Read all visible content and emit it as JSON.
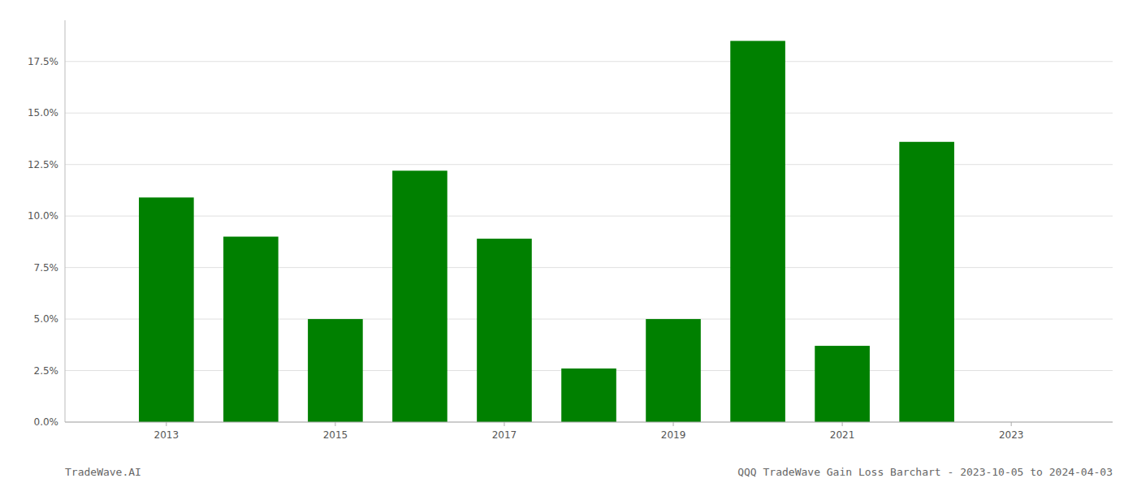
{
  "chart_data": {
    "type": "bar",
    "x": [
      2013,
      2014,
      2015,
      2016,
      2017,
      2018,
      2019,
      2020,
      2021,
      2022,
      2023
    ],
    "values": [
      0.109,
      0.09,
      0.05,
      0.122,
      0.089,
      0.026,
      0.05,
      0.185,
      0.037,
      0.136,
      0.0
    ],
    "color": "#008000",
    "xlim": [
      2011.8,
      2024.2
    ],
    "xticks": [
      2013,
      2015,
      2017,
      2019,
      2021,
      2023
    ],
    "ylim": [
      0,
      0.195
    ],
    "yticks": [
      {
        "value": 0.0,
        "label": "0.0%"
      },
      {
        "value": 0.025,
        "label": "2.5%"
      },
      {
        "value": 0.05,
        "label": "5.0%"
      },
      {
        "value": 0.075,
        "label": "7.5%"
      },
      {
        "value": 0.1,
        "label": "10.0%"
      },
      {
        "value": 0.125,
        "label": "12.5%"
      },
      {
        "value": 0.15,
        "label": "15.0%"
      },
      {
        "value": 0.175,
        "label": "17.5%"
      }
    ],
    "grid": true,
    "annotations": [
      "TradeWave.AI",
      "QQQ TradeWave Gain Loss Barchart - 2023-10-05 to 2024-04-03"
    ]
  }
}
